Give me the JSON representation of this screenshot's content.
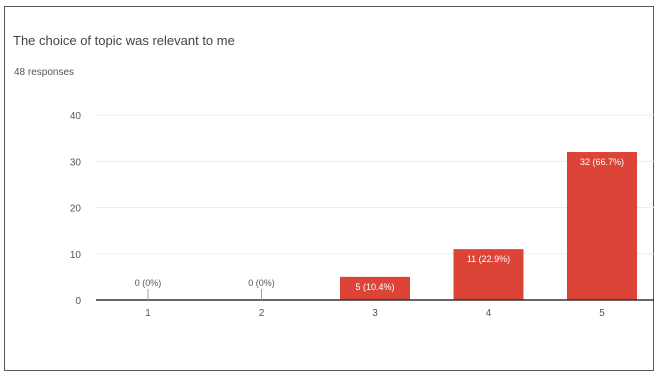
{
  "chart_data": {
    "type": "bar",
    "title": "The choice of topic was relevant to me",
    "subtitle": "48 responses",
    "categories": [
      "1",
      "2",
      "3",
      "4",
      "5"
    ],
    "values": [
      0,
      0,
      5,
      11,
      32
    ],
    "data_labels": [
      "0 (0%)",
      "0 (0%)",
      "5 (10.4%)",
      "11 (22.9%)",
      "32 (66.7%)"
    ],
    "yticks": [
      0,
      10,
      20,
      30,
      40
    ],
    "ylim": [
      0,
      40
    ],
    "xlabel": "",
    "ylabel": "",
    "grid": true,
    "bar_color": "#db4437"
  }
}
